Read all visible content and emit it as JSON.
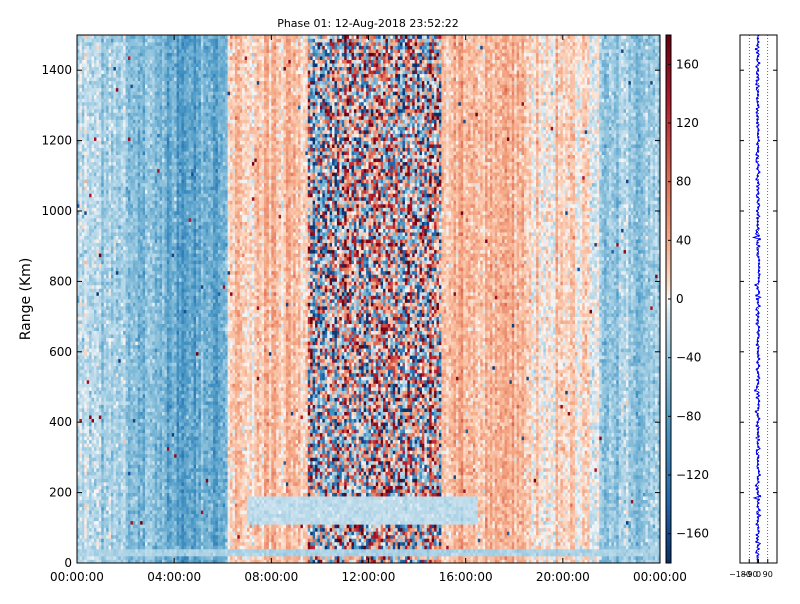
{
  "chart_data": [
    {
      "type": "heatmap",
      "title": "Phase 01: 12-Aug-2018 23:52:22",
      "ylabel": "Range (Km)",
      "xlabel": "",
      "x_ticks": [
        "00:00:00",
        "04:00:00",
        "08:00:00",
        "12:00:00",
        "16:00:00",
        "20:00:00",
        "00:00:00"
      ],
      "x_range_hours": [
        0,
        24
      ],
      "y_ticks": [
        0,
        200,
        400,
        600,
        800,
        1000,
        1200,
        1400
      ],
      "ylim": [
        0,
        1500
      ],
      "colorbar": {
        "ticks": [
          160,
          120,
          80,
          40,
          0,
          -40,
          -80,
          -120,
          -160
        ],
        "range": [
          -180,
          180
        ],
        "cmap": "RdBu_r",
        "color_low": "#08306b",
        "color_mid": "#f7f7f7",
        "color_high": "#67000d"
      },
      "time_bands": [
        {
          "start_hour": 0.0,
          "end_hour": 2.0,
          "mean_phase": -25
        },
        {
          "start_hour": 2.0,
          "end_hour": 4.0,
          "mean_phase": -55
        },
        {
          "start_hour": 4.0,
          "end_hour": 6.2,
          "mean_phase": -70
        },
        {
          "start_hour": 6.2,
          "end_hour": 9.5,
          "mean_phase": 25
        },
        {
          "start_hour": 9.5,
          "end_hour": 15.0,
          "mean_phase": 0,
          "spread": "high"
        },
        {
          "start_hour": 15.0,
          "end_hour": 18.5,
          "mean_phase": 30
        },
        {
          "start_hour": 18.5,
          "end_hour": 21.5,
          "mean_phase": 10
        },
        {
          "start_hour": 21.5,
          "end_hour": 24.0,
          "mean_phase": -40
        }
      ],
      "features": [
        {
          "description": "pale band",
          "start_hour": 7.0,
          "end_hour": 16.5,
          "range_km": [
            110,
            190
          ],
          "mean_phase": -20
        },
        {
          "description": "pale band",
          "start_hour": 0.0,
          "end_hour": 24.0,
          "range_km": [
            25,
            40
          ],
          "mean_phase": -30
        }
      ]
    },
    {
      "type": "line",
      "x_ticks": [
        -180,
        -90,
        0,
        90
      ],
      "xlim": [
        -180,
        180
      ],
      "ylim": [
        0,
        1500
      ],
      "series_color": "#0000ff",
      "mean_x": -5
    }
  ]
}
